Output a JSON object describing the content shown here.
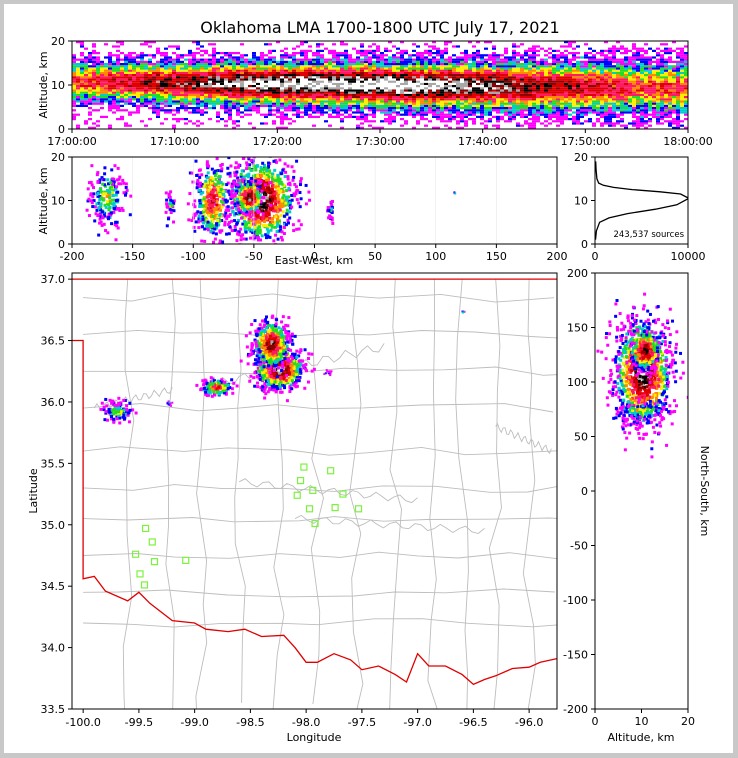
{
  "chart_data": [
    {
      "type": "heatmap",
      "panel": "time-altitude",
      "title": "Oklahoma LMA 1700-1800 UTC July 17, 2021",
      "ylabel": "Altitude, km",
      "xlim": [
        "17:00:00",
        "18:00:00"
      ],
      "ylim": [
        0,
        20
      ],
      "x_ticks": [
        "17:00:00",
        "17:10:00",
        "17:20:00",
        "17:30:00",
        "17:40:00",
        "17:50:00",
        "18:00:00"
      ],
      "y_ticks": [
        0,
        10,
        20
      ]
    },
    {
      "type": "heatmap",
      "panel": "east-west-altitude",
      "xlabel": "East-West, km",
      "ylabel": "Altitude, km",
      "xlim": [
        -200,
        200
      ],
      "ylim": [
        0,
        20
      ],
      "x_ticks": [
        -200,
        -150,
        -100,
        -50,
        0,
        50,
        100,
        150,
        200
      ],
      "y_ticks": [
        0,
        10,
        20
      ]
    },
    {
      "type": "line",
      "panel": "altitude-histogram",
      "annotation": "243,537 sources",
      "xlim": [
        0,
        10000
      ],
      "ylim": [
        0,
        20
      ],
      "x_ticks": [
        0,
        10000
      ],
      "y_ticks": [
        0,
        10,
        20
      ],
      "x": [
        50,
        150,
        500,
        1500,
        3500,
        6500,
        8800,
        10100,
        9200,
        7000,
        4000,
        2000,
        900,
        400,
        200,
        120,
        80
      ],
      "y": [
        1,
        3,
        5,
        6,
        7,
        8,
        9,
        10.5,
        11.5,
        12,
        12.5,
        13,
        13.5,
        14,
        15,
        17,
        19
      ]
    },
    {
      "type": "heatmap",
      "panel": "plan-view",
      "xlabel": "Longitude",
      "ylabel": "Latitude",
      "xlim": [
        -100.1,
        -95.75
      ],
      "ylim": [
        33.5,
        37.05
      ],
      "x_ticks": [
        "-100.0",
        "-99.5",
        "-99.0",
        "-98.5",
        "-98.0",
        "-97.5",
        "-97.0",
        "-96.5",
        "-96.0"
      ],
      "y_ticks": [
        "33.5",
        "34.0",
        "34.5",
        "35.0",
        "35.5",
        "36.0",
        "36.5",
        "37.0"
      ],
      "stations": {
        "lon": [
          -98.02,
          -98.05,
          -98.08,
          -97.97,
          -97.94,
          -97.92,
          -97.78,
          -97.74,
          -97.67,
          -97.53,
          -99.44,
          -99.38,
          -99.36,
          -99.08,
          -99.53,
          -99.49,
          -99.45
        ],
        "lat": [
          35.47,
          35.36,
          35.24,
          35.13,
          35.28,
          35.01,
          35.44,
          35.14,
          35.25,
          35.13,
          34.97,
          34.86,
          34.7,
          34.71,
          34.76,
          34.6,
          34.51
        ]
      }
    },
    {
      "type": "heatmap",
      "panel": "altitude-north-south",
      "xlabel": "Altitude, km",
      "ylabel": "North-South, km",
      "xlim": [
        0,
        20
      ],
      "ylim": [
        -200,
        200
      ],
      "x_ticks": [
        0,
        10,
        20
      ],
      "y_ticks": [
        -200,
        -150,
        -100,
        -50,
        0,
        50,
        100,
        150,
        200
      ]
    }
  ]
}
